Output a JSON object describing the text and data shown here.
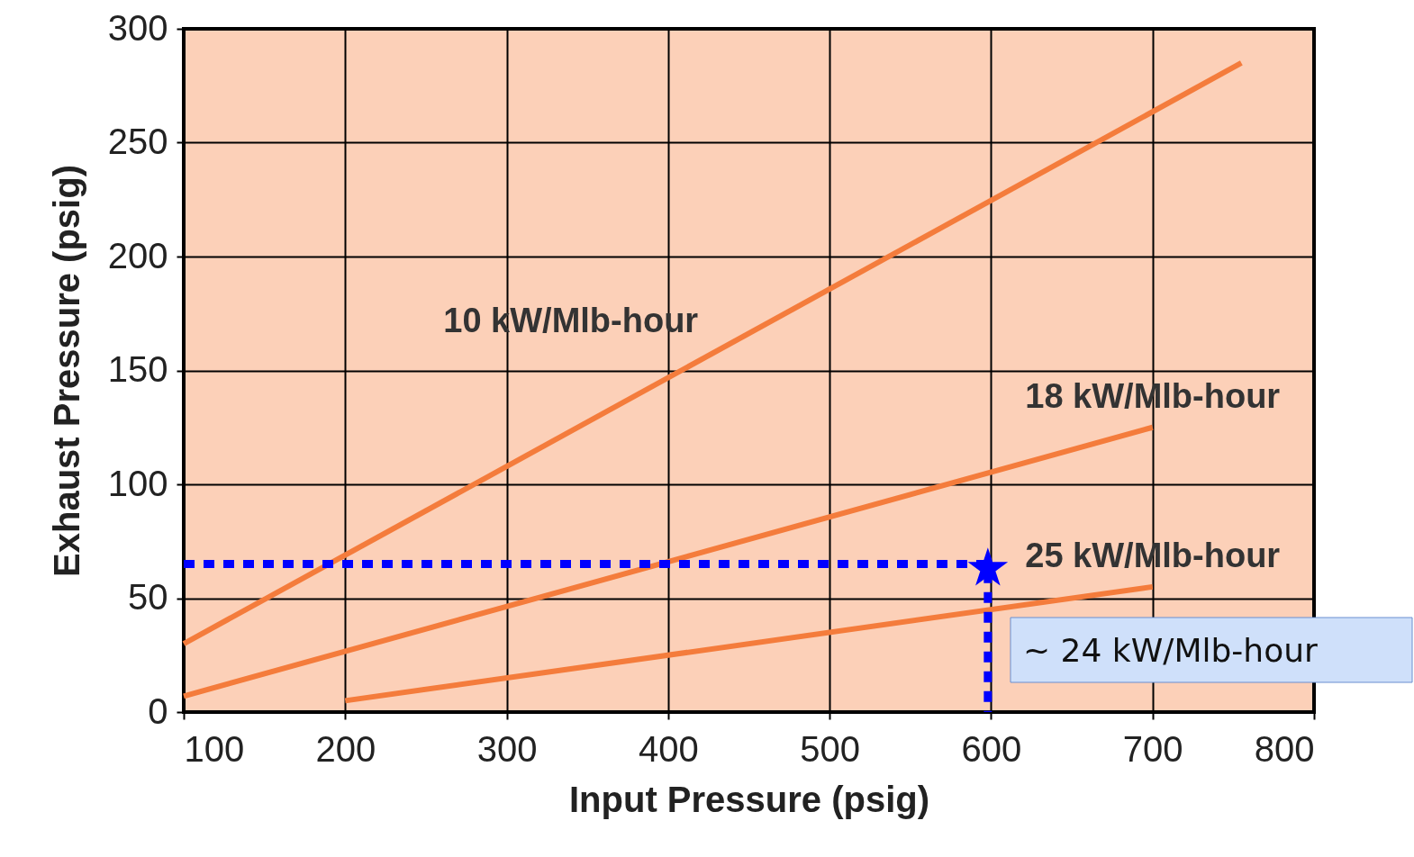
{
  "chart_data": {
    "type": "line",
    "xlabel": "Input Pressure (psig)",
    "ylabel": "Exhaust Pressure (psig)",
    "xlim": [
      100,
      800
    ],
    "xticks": [
      100,
      200,
      300,
      400,
      500,
      600,
      700,
      800
    ],
    "ylim": [
      0,
      300
    ],
    "yticks": [
      0,
      50,
      100,
      150,
      200,
      250,
      300
    ],
    "grid": true,
    "series": [
      {
        "name": "10 kW/Mlb-hour",
        "color": "#f47c3c",
        "x": [
          100,
          755
        ],
        "values": [
          30,
          285
        ]
      },
      {
        "name": "18 kW/Mlb-hour",
        "color": "#f47c3c",
        "x": [
          100,
          700
        ],
        "values": [
          7,
          125
        ]
      },
      {
        "name": "25 kW/Mlb-hour",
        "color": "#f47c3c",
        "x": [
          200,
          700
        ],
        "values": [
          5,
          55
        ]
      },
      {
        "color": "#0000ff",
        "line_style": "dashed",
        "x": [
          100,
          598,
          598
        ],
        "values": [
          65,
          65,
          0
        ]
      },
      {
        "type": "scatter",
        "marker": "star",
        "color": "#0000ff",
        "x": [
          598
        ],
        "values": [
          63
        ]
      }
    ],
    "annotations": [
      "~ 24  kW/Mlb-hour"
    ]
  }
}
